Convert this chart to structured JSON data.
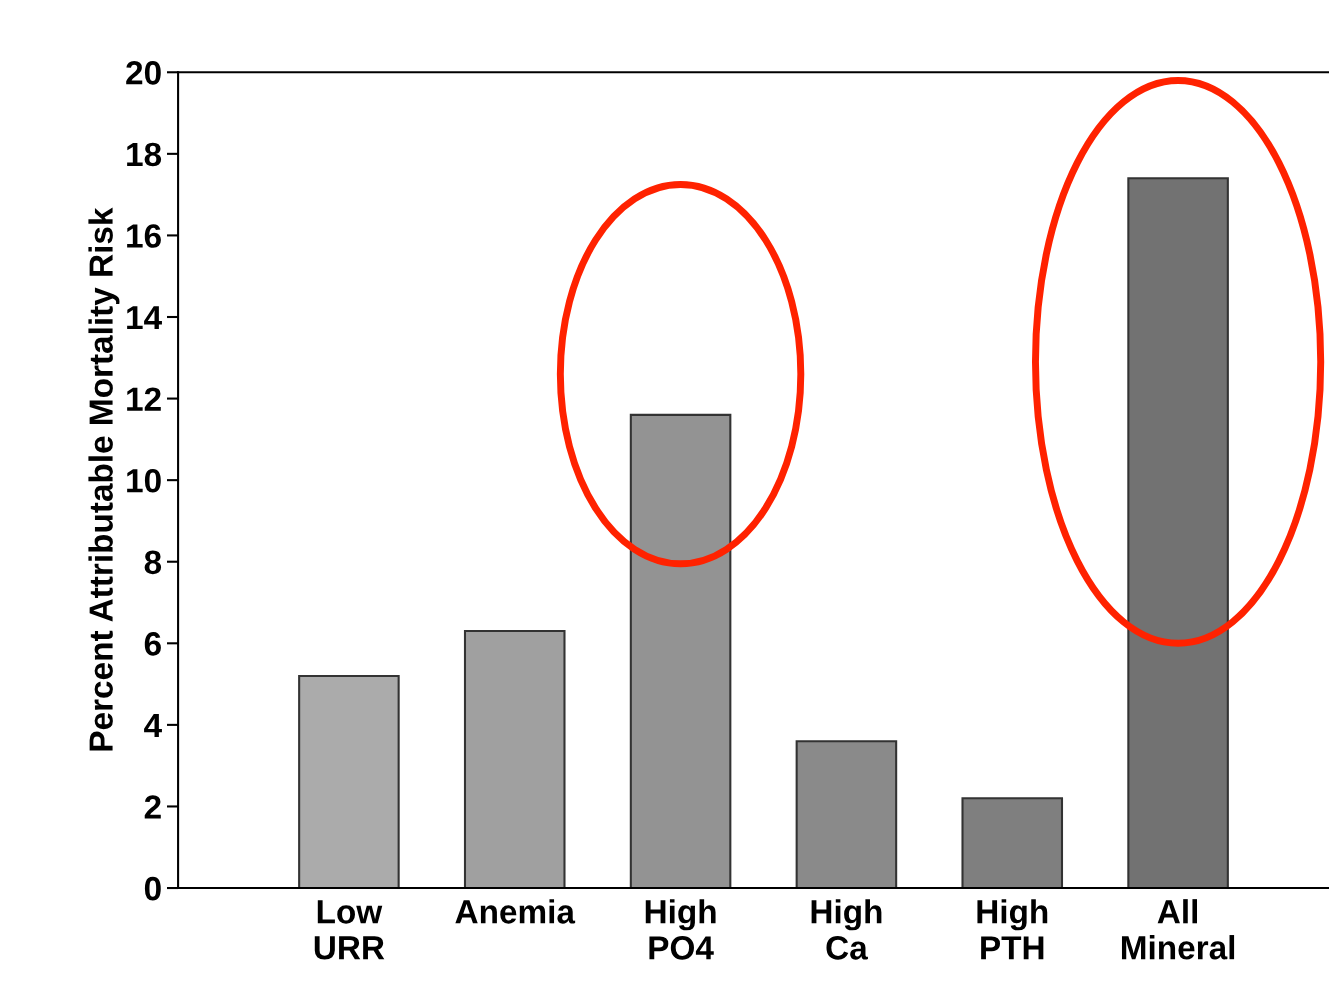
{
  "chart_data": {
    "type": "bar",
    "ylabel": "Percent Attributable Mortality Risk",
    "categories": [
      "Low\nURR",
      "Anemia",
      "High\nPO4",
      "High\nCa",
      "High\nPTH",
      "All\nMineral"
    ],
    "values": [
      5.2,
      6.3,
      11.6,
      3.6,
      2.2,
      17.4
    ],
    "colors": [
      "#ababab",
      "#a0a0a0",
      "#939393",
      "#8a8a8a",
      "#7f7f7f",
      "#727272"
    ],
    "ylim": [
      0,
      20
    ],
    "yticks": [
      0,
      2,
      4,
      6,
      8,
      10,
      12,
      14,
      16,
      18,
      20
    ],
    "grid": false
  }
}
